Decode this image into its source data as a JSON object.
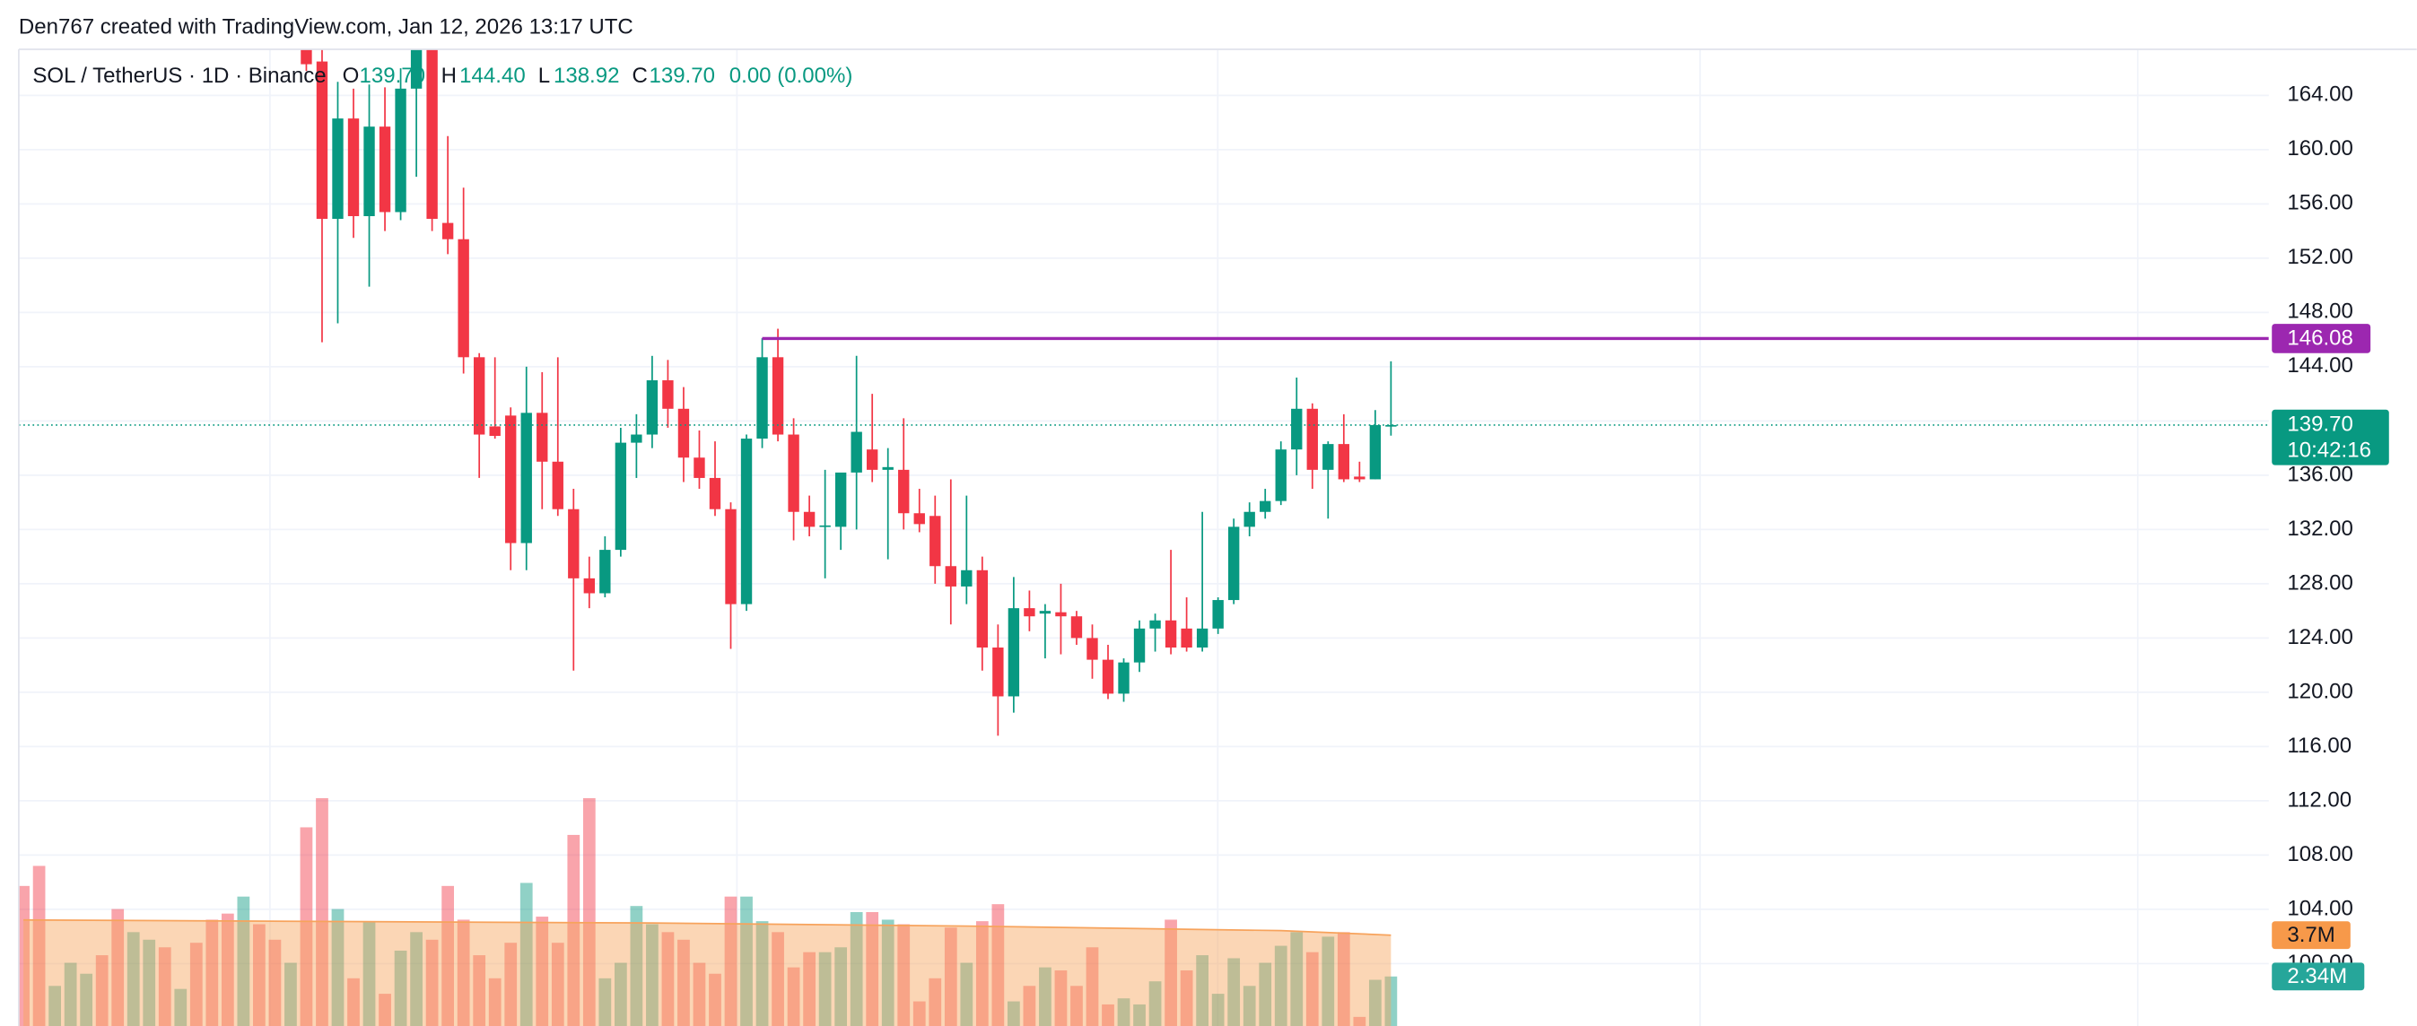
{
  "header": {
    "text": "Den767 created with TradingView.com, Jan 12, 2026 13:17 UTC"
  },
  "chart_data": {
    "type": "candlestick",
    "title": "SOL / TetherUS · 1D · Binance",
    "legend": {
      "o_label": "O",
      "o": {
        "value": 139.7,
        "label": "139.70"
      },
      "h_label": "H",
      "h": {
        "value": 144.4,
        "label": "144.40"
      },
      "l_label": "L",
      "l": {
        "value": 138.92,
        "label": "138.92"
      },
      "c_label": "C",
      "c": {
        "value": 139.7,
        "label": "139.70"
      },
      "change": "0.00 (0.00%)"
    },
    "up_color": "#089981",
    "down_color": "#f23645",
    "open": [
      null,
      null,
      null,
      null,
      null,
      null,
      null,
      null,
      null,
      null,
      null,
      null,
      null,
      null,
      null,
      null,
      null,
      null,
      170,
      166.5,
      154.9,
      162.3,
      155.1,
      161.7,
      155.4,
      164.5,
      168,
      154.6,
      153.4,
      144.7,
      139.6,
      140.4,
      131,
      140.6,
      137,
      133.5,
      128.4,
      127.3,
      130.5,
      138.4,
      139,
      143,
      140.9,
      137.3,
      135.8,
      133.5,
      126.5,
      138.7,
      144.7,
      139,
      133.3,
      132.2,
      132.2,
      136.2,
      137.9,
      136.4,
      136.4,
      133.2,
      133,
      129.3,
      127.8,
      129,
      123.3,
      119.7,
      126.2,
      125.8,
      125.9,
      125.6,
      124,
      122.4,
      119.9,
      122.2,
      124.7,
      125.3,
      124.7,
      123.3,
      124.7,
      126.8,
      132.2,
      133.3,
      134.1,
      137.9,
      140.9,
      136.4,
      138.3,
      135.9,
      135.7,
      139.7
    ],
    "high": [
      null,
      null,
      null,
      null,
      null,
      null,
      null,
      null,
      null,
      null,
      null,
      null,
      null,
      null,
      null,
      null,
      null,
      null,
      172,
      168,
      165,
      164.5,
      164.8,
      164.6,
      166,
      170,
      169,
      161,
      157.2,
      145,
      144.7,
      141,
      144,
      143.6,
      144.7,
      135,
      130,
      131.5,
      139.5,
      140.5,
      144.8,
      144.5,
      142.5,
      139.3,
      138.5,
      134,
      139,
      146.1,
      146.8,
      140.2,
      134.5,
      136.4,
      136,
      144.8,
      142,
      138,
      140.2,
      135,
      134.5,
      135.7,
      134.5,
      130,
      125,
      128.5,
      127.5,
      126.5,
      128,
      126,
      125,
      123.5,
      122.5,
      125.3,
      125.8,
      130.5,
      127,
      133.3,
      127,
      132.8,
      134,
      135,
      138.5,
      143.2,
      141.3,
      138.5,
      140.5,
      137,
      140.8,
      144.4
    ],
    "low": [
      null,
      null,
      null,
      null,
      null,
      null,
      null,
      null,
      null,
      null,
      null,
      null,
      null,
      null,
      null,
      null,
      null,
      null,
      165.8,
      145.8,
      147.2,
      153.5,
      149.9,
      154,
      154.8,
      158,
      154,
      152.3,
      143.5,
      135.8,
      138.7,
      129,
      129,
      133.5,
      133,
      121.6,
      126.2,
      127,
      130,
      135.8,
      138,
      139.5,
      135.5,
      135,
      133,
      123.2,
      126,
      138,
      138.5,
      131.2,
      131.5,
      128.4,
      130.5,
      132,
      135.5,
      129.8,
      132,
      131.8,
      128,
      125,
      126.5,
      121.6,
      116.8,
      118.5,
      124.5,
      122.5,
      122.8,
      123.5,
      121,
      119.5,
      119.3,
      121.5,
      123,
      122.8,
      123,
      123,
      124.3,
      126.5,
      131.5,
      132.8,
      133.8,
      136,
      135,
      132.8,
      135.5,
      135.5,
      135.7,
      138.92
    ],
    "close": [
      null,
      null,
      null,
      null,
      null,
      null,
      null,
      null,
      null,
      null,
      null,
      null,
      null,
      null,
      null,
      null,
      null,
      null,
      166.3,
      154.9,
      162.3,
      155.1,
      161.7,
      155.4,
      164.5,
      168,
      154.9,
      153.4,
      144.7,
      139,
      138.9,
      131,
      140.6,
      137,
      133.5,
      128.4,
      127.3,
      130.5,
      138.4,
      139,
      143,
      140.9,
      137.3,
      135.8,
      133.5,
      126.5,
      138.7,
      144.7,
      139,
      133.3,
      132.2,
      132.3,
      136.2,
      139.2,
      136.4,
      136.6,
      133.2,
      132.4,
      129.3,
      127.8,
      129,
      123.3,
      119.7,
      126.2,
      125.6,
      126,
      125.6,
      124,
      122.4,
      119.9,
      122.2,
      124.7,
      125.3,
      123.3,
      123.3,
      124.7,
      126.8,
      132.2,
      133.3,
      134.1,
      137.9,
      140.9,
      136.4,
      138.3,
      135.7,
      135.7,
      139.7,
      139.7
    ],
    "volumes": [
      5.32,
      5.98,
      2.03,
      2.79,
      2.43,
      3.04,
      4.56,
      3.8,
      3.55,
      3.3,
      1.93,
      3.45,
      4.21,
      4.41,
      4.97,
      4.06,
      3.55,
      2.79,
      7.25,
      8.21,
      4.56,
      2.28,
      4.16,
      1.77,
      3.19,
      3.8,
      3.55,
      5.32,
      4.21,
      3.04,
      2.28,
      3.45,
      5.42,
      4.31,
      3.45,
      7,
      8.21,
      2.28,
      2.79,
      4.66,
      4.06,
      3.8,
      3.55,
      2.79,
      2.43,
      4.97,
      4.97,
      4.16,
      3.8,
      2.64,
      3.14,
      3.14,
      3.3,
      4.46,
      4.46,
      4.21,
      4.06,
      1.52,
      2.28,
      3.95,
      2.79,
      4.16,
      4.72,
      1.52,
      2.03,
      2.64,
      2.54,
      2.03,
      3.3,
      1.42,
      1.62,
      1.42,
      2.18,
      4.21,
      2.54,
      3.04,
      1.77,
      2.94,
      2.03,
      2.79,
      3.35,
      3.8,
      3.14,
      3.65,
      3.8,
      1.01,
      2.23,
      2.34
    ],
    "volume_colors": [
      "#f23645",
      "#f23645",
      "#089981",
      "#089981",
      "#089981",
      "#f23645",
      "#f23645",
      "#089981",
      "#089981",
      "#f23645",
      "#089981",
      "#f23645",
      "#f23645",
      "#f23645",
      "#089981",
      "#f23645",
      "#f23645",
      "#089981",
      "#f23645",
      "#f23645",
      "#089981",
      "#f23645",
      "#089981",
      "#f23645",
      "#089981",
      "#089981",
      "#f23645",
      "#f23645",
      "#f23645",
      "#f23645",
      "#f23645",
      "#f23645",
      "#089981",
      "#f23645",
      "#f23645",
      "#f23645",
      "#f23645",
      "#089981",
      "#089981",
      "#089981",
      "#089981",
      "#f23645",
      "#f23645",
      "#f23645",
      "#f23645",
      "#f23645",
      "#089981",
      "#089981",
      "#f23645",
      "#f23645",
      "#f23645",
      "#089981",
      "#089981",
      "#089981",
      "#f23645",
      "#089981",
      "#f23645",
      "#f23645",
      "#f23645",
      "#f23645",
      "#089981",
      "#f23645",
      "#f23645",
      "#089981",
      "#f23645",
      "#089981",
      "#f23645",
      "#f23645",
      "#f23645",
      "#f23645",
      "#089981",
      "#089981",
      "#089981",
      "#f23645",
      "#f23645",
      "#089981",
      "#089981",
      "#089981",
      "#089981",
      "#089981",
      "#089981",
      "#089981",
      "#f23645",
      "#089981",
      "#f23645",
      "#f23645",
      "#089981",
      "#089981"
    ],
    "volume_ma": {
      "color": "#f7a35c",
      "x": [
        0,
        20,
        40,
        60,
        80,
        87
      ],
      "values": [
        4.2,
        4.15,
        4.1,
        4.0,
        3.85,
        3.7
      ],
      "value_label": "3.7M"
    },
    "volume_last_label": "2.34M",
    "last_price": {
      "value": 139.7,
      "label": "139.70",
      "countdown": "10:42:16",
      "color": "#089981"
    },
    "levels": [
      {
        "value": 146.08,
        "label": "146.08",
        "color": "#9c27b0",
        "x_start": 47
      }
    ],
    "ylim": [
      95.4,
      167.4
    ],
    "yticks": [
      {
        "value": 100,
        "label": "100.00"
      },
      {
        "value": 104,
        "label": "104.00"
      },
      {
        "value": 108,
        "label": "108.00"
      },
      {
        "value": 112,
        "label": "112.00"
      },
      {
        "value": 116,
        "label": "116.00"
      },
      {
        "value": 120,
        "label": "120.00"
      },
      {
        "value": 124,
        "label": "124.00"
      },
      {
        "value": 128,
        "label": "128.00"
      },
      {
        "value": 132,
        "label": "132.00"
      },
      {
        "value": 136,
        "label": "136.00"
      },
      {
        "value": 140,
        "label": "140.00"
      },
      {
        "value": 144,
        "label": "144.00"
      },
      {
        "value": 148,
        "label": "148.00"
      },
      {
        "value": 152,
        "label": "152.00"
      },
      {
        "value": 156,
        "label": "156.00"
      },
      {
        "value": 160,
        "label": "160.00"
      },
      {
        "value": 164,
        "label": "164.00"
      }
    ],
    "grid": true
  }
}
